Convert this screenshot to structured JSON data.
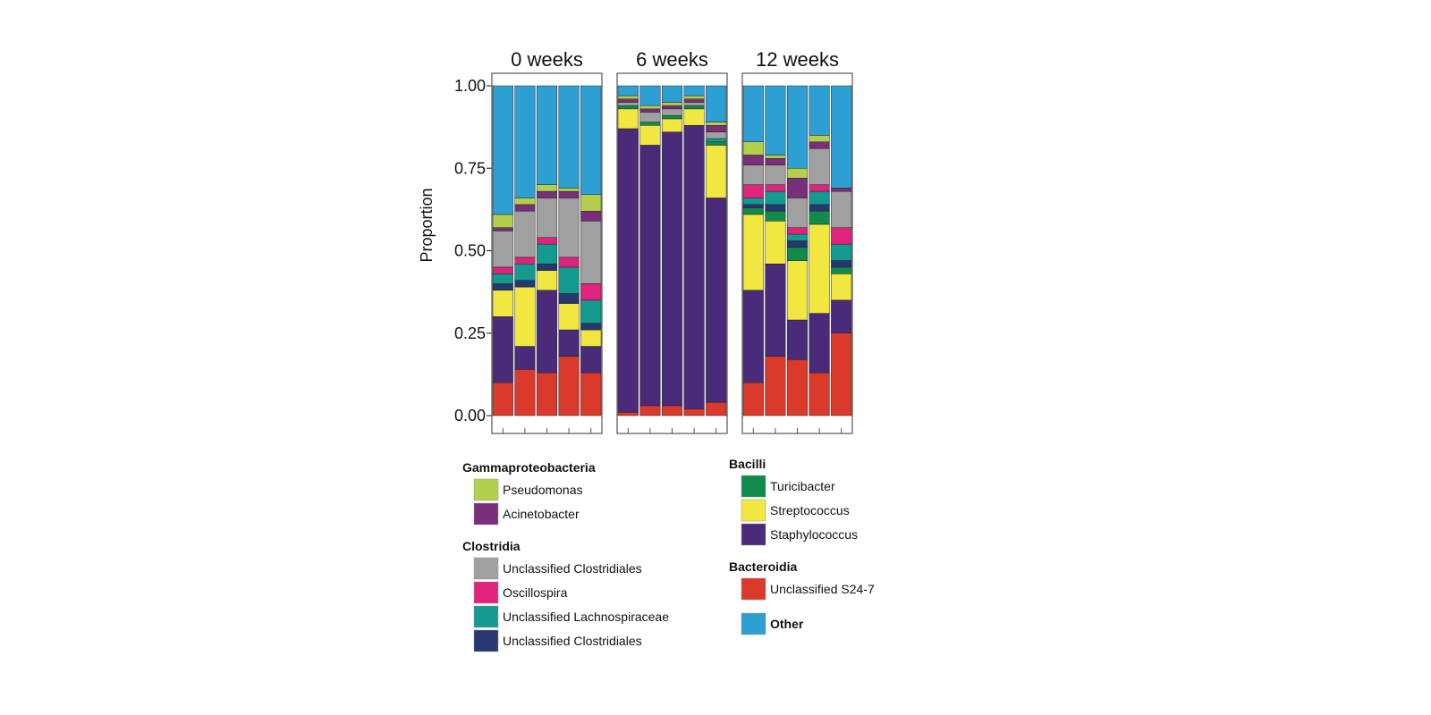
{
  "chart_data": {
    "type": "bar",
    "stacked": true,
    "ylabel": "Proportion",
    "ylim": [
      0,
      1
    ],
    "y_ticks": [
      "0.00",
      "0.25",
      "0.50",
      "0.75",
      "1.00"
    ],
    "y_tick_values": [
      0,
      0.25,
      0.5,
      0.75,
      1
    ],
    "facets": [
      "0 weeks",
      "6 weeks",
      "12 weeks"
    ],
    "taxa_order": [
      "Unclassified S24-7",
      "Staphylococcus",
      "Streptococcus",
      "Turicibacter",
      "Unclassified Clostridiales 2",
      "Unclassified Lachnospiraceae",
      "Oscillospira",
      "Unclassified Clostridiales",
      "Acinetobacter",
      "Pseudomonas",
      "Other"
    ],
    "colors": {
      "Unclassified S24-7": "#d93a2b",
      "Staphylococcus": "#4a2b7a",
      "Streptococcus": "#f2e640",
      "Turicibacter": "#128a4a",
      "Unclassified Clostridiales 2": "#26386f",
      "Unclassified Lachnospiraceae": "#159a8f",
      "Oscillospira": "#e0247e",
      "Unclassified Clostridiales": "#a0a0a0",
      "Acinetobacter": "#7a2f7a",
      "Pseudomonas": "#b3cf4e",
      "Other": "#2e9fd3"
    },
    "samples": [
      [
        [
          0.1,
          0.2,
          0.08,
          0.0,
          0.02,
          0.03,
          0.02,
          0.11,
          0.01,
          0.04,
          0.39
        ],
        [
          0.14,
          0.07,
          0.18,
          0.0,
          0.02,
          0.05,
          0.02,
          0.14,
          0.02,
          0.02,
          0.34
        ],
        [
          0.13,
          0.25,
          0.06,
          0.0,
          0.02,
          0.06,
          0.02,
          0.12,
          0.02,
          0.02,
          0.3
        ],
        [
          0.18,
          0.08,
          0.08,
          0.0,
          0.03,
          0.08,
          0.03,
          0.18,
          0.02,
          0.01,
          0.31
        ],
        [
          0.13,
          0.08,
          0.05,
          0.0,
          0.02,
          0.07,
          0.05,
          0.19,
          0.03,
          0.05,
          0.33
        ]
      ],
      [
        [
          0.01,
          0.86,
          0.06,
          0.01,
          0.0,
          0.0,
          0.0,
          0.01,
          0.01,
          0.01,
          0.03
        ],
        [
          0.03,
          0.79,
          0.06,
          0.01,
          0.0,
          0.0,
          0.0,
          0.03,
          0.01,
          0.01,
          0.06
        ],
        [
          0.03,
          0.83,
          0.04,
          0.01,
          0.0,
          0.0,
          0.0,
          0.02,
          0.01,
          0.01,
          0.05
        ],
        [
          0.02,
          0.86,
          0.05,
          0.01,
          0.0,
          0.0,
          0.0,
          0.01,
          0.01,
          0.01,
          0.03
        ],
        [
          0.04,
          0.62,
          0.16,
          0.01,
          0.0,
          0.01,
          0.0,
          0.02,
          0.02,
          0.01,
          0.11
        ]
      ],
      [
        [
          0.1,
          0.28,
          0.23,
          0.02,
          0.01,
          0.02,
          0.04,
          0.06,
          0.03,
          0.04,
          0.17
        ],
        [
          0.18,
          0.28,
          0.13,
          0.03,
          0.02,
          0.04,
          0.02,
          0.06,
          0.02,
          0.01,
          0.21
        ],
        [
          0.17,
          0.12,
          0.18,
          0.04,
          0.02,
          0.02,
          0.02,
          0.09,
          0.06,
          0.03,
          0.25
        ],
        [
          0.13,
          0.18,
          0.27,
          0.04,
          0.02,
          0.04,
          0.02,
          0.11,
          0.02,
          0.02,
          0.15
        ],
        [
          0.25,
          0.1,
          0.08,
          0.02,
          0.02,
          0.05,
          0.05,
          0.11,
          0.01,
          0.0,
          0.31
        ]
      ]
    ]
  },
  "legend": {
    "groups": [
      {
        "title": "Gammaproteobacteria",
        "items": [
          {
            "label": "Pseudomonas",
            "color": "#b3cf4e"
          },
          {
            "label": "Acinetobacter",
            "color": "#7a2f7a"
          }
        ]
      },
      {
        "title": "Clostridia",
        "items": [
          {
            "label": "Unclassified Clostridiales",
            "color": "#a0a0a0"
          },
          {
            "label": "Oscillospira",
            "color": "#e0247e"
          },
          {
            "label": "Unclassified Lachnospiraceae",
            "color": "#159a8f"
          },
          {
            "label": "Unclassified Clostridiales",
            "color": "#26386f"
          }
        ]
      },
      {
        "title": "Bacilli",
        "items": [
          {
            "label": "Turicibacter",
            "color": "#128a4a"
          },
          {
            "label": "Streptococcus",
            "color": "#f2e640"
          },
          {
            "label": "Staphylococcus",
            "color": "#4a2b7a"
          }
        ]
      },
      {
        "title": "Bacteroidia",
        "items": [
          {
            "label": "Unclassified S24-7",
            "color": "#d93a2b"
          }
        ]
      }
    ],
    "other": {
      "label": "Other",
      "color": "#2e9fd3"
    }
  }
}
